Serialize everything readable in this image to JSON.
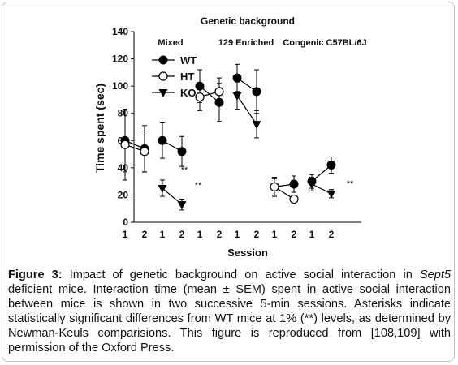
{
  "chart_data": {
    "type": "line",
    "title": "Genetic background",
    "xlabel": "Session",
    "ylabel": "Time spent (sec)",
    "ylim": [
      0,
      140
    ],
    "yticks": [
      0,
      20,
      40,
      60,
      80,
      100,
      120,
      140
    ],
    "groups": [
      {
        "name": "Mixed",
        "sessions": [
          "1",
          "2"
        ]
      },
      {
        "name": "129 Enriched",
        "sessions": [
          "1",
          "2"
        ]
      },
      {
        "name": "Congenic C57BL/6J",
        "sessions": [
          "1",
          "2"
        ]
      }
    ],
    "legend": {
      "placement": "top-left",
      "entries": [
        "WT",
        "HT",
        "KO"
      ]
    },
    "series": [
      {
        "name": "WT",
        "marker": "filled-circle",
        "panels": [
          {
            "groups": [
              {
                "values": [
                  60,
                  54
                ],
                "errors": [
                  23,
                  17
                ]
              },
              {
                "values": [
                  60,
                  52
                ],
                "errors": [
                  13,
                  11
                ]
              }
            ]
          },
          {
            "groups": [
              {
                "values": [
                  100,
                  88
                ],
                "errors": [
                  12,
                  14
                ]
              },
              {
                "values": [
                  106,
                  96
                ],
                "errors": [
                  10,
                  16
                ]
              }
            ]
          },
          {
            "groups": [
              {
                "values": [
                  26,
                  28
                ],
                "errors": [
                  7,
                  6
                ]
              },
              {
                "values": [
                  30,
                  42
                ],
                "errors": [
                  5,
                  6
                ]
              }
            ]
          }
        ]
      },
      {
        "name": "HT",
        "marker": "open-circle",
        "panels": [
          {
            "groups": [
              {
                "values": [
                  57,
                  52
                ],
                "errors": [
                  26,
                  15
                ]
              }
            ]
          },
          {
            "groups": [
              {
                "values": [
                  92,
                  96
                ],
                "errors": [
                  10,
                  10
                ]
              }
            ]
          },
          {
            "groups": [
              {
                "values": [
                  26,
                  17
                ],
                "errors": [
                  6,
                  0
                ]
              }
            ]
          }
        ]
      },
      {
        "name": "KO",
        "marker": "filled-triangle-down",
        "panels": [
          {
            "groups": [
              {
                "values": [
                  25,
                  13
                ],
                "errors": [
                  6,
                  4
                ]
              }
            ]
          },
          {
            "groups": [
              {
                "values": [
                  93,
                  72
                ],
                "errors": [
                  10,
                  10
                ]
              }
            ]
          },
          {
            "groups": [
              {
                "values": [
                  28,
                  21
                ],
                "errors": [
                  5,
                  3
                ]
              }
            ]
          }
        ]
      }
    ],
    "annotations": [
      "**",
      "**",
      "**"
    ]
  },
  "caption": {
    "label": "Figure 3:",
    "text_before_italic": " Impact of genetic background on active social interaction in ",
    "italic": "Sept5",
    "text_after_italic": " deficient mice. Interaction time (mean ± SEM) spent in active social interaction between mice is shown in two successive 5-min sessions. Asterisks indicate statistically significant differences from WT mice at 1% (**) levels, as determined by Newman-Keuls comparisions. This figure is reproduced from [108,109] with permission of the Oxford Press."
  }
}
